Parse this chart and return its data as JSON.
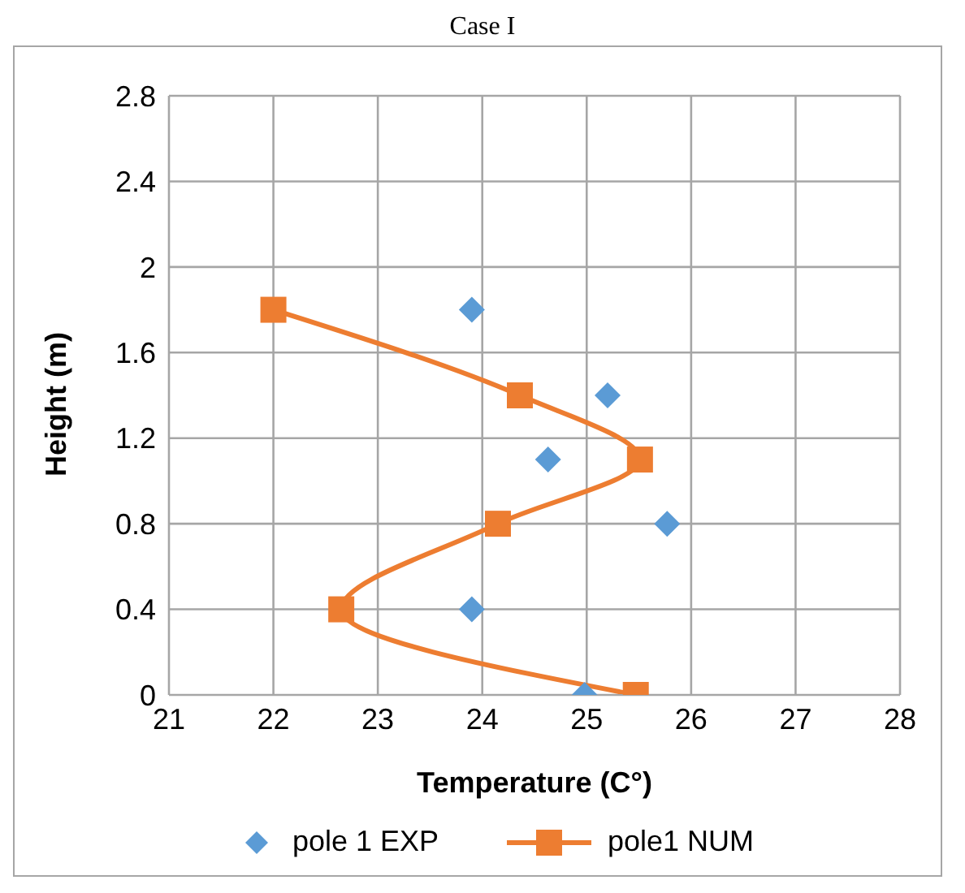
{
  "chart_data": {
    "type": "line",
    "title": "Case I",
    "xlabel": "Temperature (C°)",
    "ylabel": "Height (m)",
    "xlim": [
      21,
      28
    ],
    "xticks": [
      21,
      22,
      23,
      24,
      25,
      26,
      27,
      28
    ],
    "ylim": [
      0,
      2.8
    ],
    "yticks": [
      0,
      0.4,
      0.8,
      1.2,
      1.6,
      2,
      2.4,
      2.8
    ],
    "grid": true,
    "legend": "bottom",
    "series": [
      {
        "name": "pole 1 EXP",
        "type": "scatter",
        "marker": "diamond",
        "color": "#5b9bd5",
        "x": [
          23.9,
          25.2,
          24.63,
          25.77,
          23.9,
          24.98
        ],
        "values": [
          1.8,
          1.4,
          1.1,
          0.8,
          0.4,
          0
        ]
      },
      {
        "name": "pole1 NUM",
        "marker": "square",
        "line_style": "solid",
        "color": "#ed7d31",
        "x": [
          22,
          24.36,
          25.51,
          24.15,
          22.65,
          25.47
        ],
        "values": [
          1.8,
          1.4,
          1.1,
          0.8,
          0.4,
          0
        ]
      }
    ]
  }
}
